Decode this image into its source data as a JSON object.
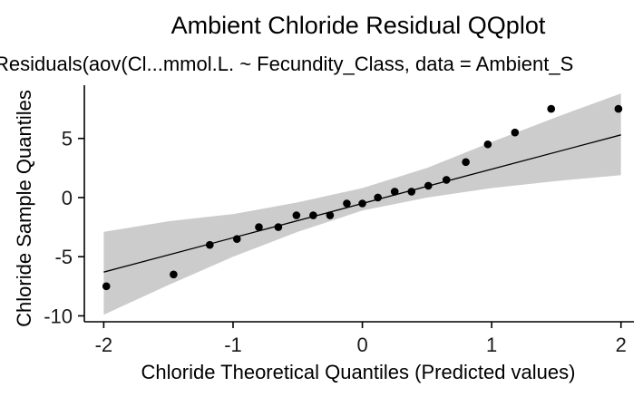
{
  "chart_data": {
    "type": "scatter",
    "title": "Ambient Chloride Residual QQplot",
    "subtitle": "Residuals(aov(Cl...mmol.L. ~ Fecundity_Class, data = Ambient_S",
    "xlabel": "Chloride Theoretical Quantiles (Predicted values)",
    "ylabel": "Chloride Sample Quantiles",
    "xlim": [
      -2.15,
      2.1
    ],
    "ylim": [
      -10.5,
      9.5
    ],
    "x_ticks": [
      -2,
      -1,
      0,
      1,
      2
    ],
    "y_ticks": [
      -10,
      -5,
      0,
      5
    ],
    "x_tick_labels": [
      "-2",
      "-1",
      "0",
      "1",
      "2"
    ],
    "y_tick_labels": [
      "-10",
      "-5",
      "0",
      "5"
    ],
    "grid": false,
    "legend": "none",
    "colors": {
      "points": "#000000",
      "band": "#cccccc",
      "line": "#000000"
    },
    "points": [
      {
        "x": -1.98,
        "y": -7.5
      },
      {
        "x": -1.46,
        "y": -6.5
      },
      {
        "x": -1.18,
        "y": -4.0
      },
      {
        "x": -0.97,
        "y": -3.5
      },
      {
        "x": -0.8,
        "y": -2.5
      },
      {
        "x": -0.65,
        "y": -2.5
      },
      {
        "x": -0.51,
        "y": -1.5
      },
      {
        "x": -0.38,
        "y": -1.5
      },
      {
        "x": -0.25,
        "y": -1.5
      },
      {
        "x": -0.12,
        "y": -0.5
      },
      {
        "x": 0.0,
        "y": -0.5
      },
      {
        "x": 0.12,
        "y": 0.0
      },
      {
        "x": 0.25,
        "y": 0.5
      },
      {
        "x": 0.38,
        "y": 0.5
      },
      {
        "x": 0.51,
        "y": 1.0
      },
      {
        "x": 0.65,
        "y": 1.5
      },
      {
        "x": 0.8,
        "y": 3.0
      },
      {
        "x": 0.97,
        "y": 4.5
      },
      {
        "x": 1.18,
        "y": 5.5
      },
      {
        "x": 1.46,
        "y": 7.5
      },
      {
        "x": 1.98,
        "y": 7.5
      }
    ],
    "reference_line": {
      "x": [
        -2.0,
        2.0
      ],
      "y": [
        -6.3,
        5.3
      ]
    },
    "confidence_band": {
      "x": [
        -2.0,
        -1.5,
        -1.0,
        -0.5,
        0.0,
        0.5,
        1.0,
        1.5,
        2.0
      ],
      "lower": [
        -9.9,
        -7.4,
        -5.0,
        -2.9,
        -1.1,
        0.0,
        0.8,
        1.4,
        1.9
      ],
      "upper": [
        -2.9,
        -2.0,
        -1.4,
        -0.4,
        0.8,
        2.5,
        4.7,
        6.8,
        8.8
      ]
    }
  }
}
